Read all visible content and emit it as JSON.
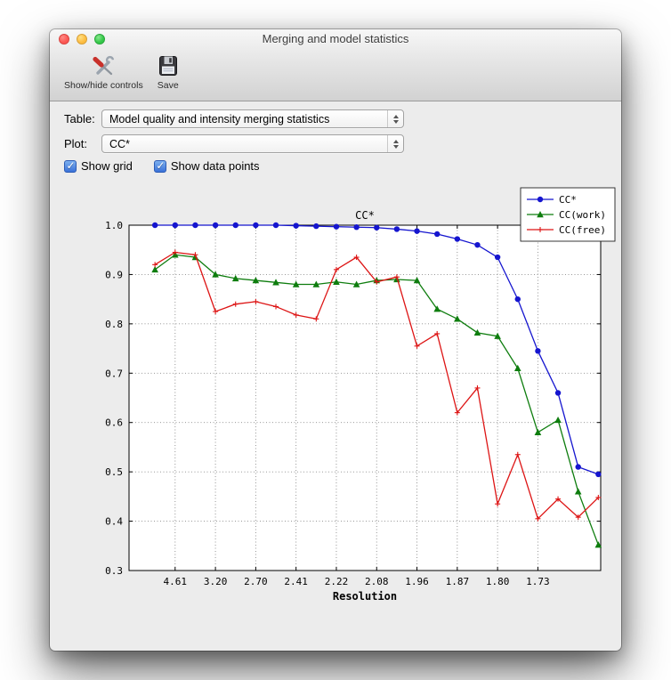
{
  "window": {
    "title": "Merging and model statistics"
  },
  "titlebar": {
    "buttons": [
      {
        "name": "close"
      },
      {
        "name": "minimize"
      },
      {
        "name": "zoom"
      }
    ]
  },
  "toolbar": {
    "buttons": [
      {
        "label": "Show/hide controls",
        "icon": "tools-icon"
      },
      {
        "label": "Save",
        "icon": "save-icon"
      }
    ]
  },
  "controls": {
    "table": {
      "label": "Table:",
      "value": "Model quality and intensity merging statistics"
    },
    "plot": {
      "label": "Plot:",
      "value": "CC*"
    },
    "checkboxes": [
      {
        "label": "Show grid",
        "checked": true
      },
      {
        "label": "Show data points",
        "checked": true
      }
    ]
  },
  "chart_data": {
    "type": "line",
    "title": "CC*",
    "xlabel": "Resolution",
    "ylabel": "",
    "ylim": [
      0.3,
      1.0
    ],
    "yticks": [
      0.3,
      0.4,
      0.5,
      0.6,
      0.7,
      0.8,
      0.9,
      1.0
    ],
    "xtick_labels": [
      "4.61",
      "3.20",
      "2.70",
      "2.41",
      "2.22",
      "2.08",
      "1.96",
      "1.87",
      "1.80",
      "1.73"
    ],
    "xtick_bins": [
      1,
      3,
      5,
      7,
      9,
      11,
      13,
      15,
      17,
      19
    ],
    "n_bins": 23,
    "grid": true,
    "show_data_points": true,
    "legend_position": "upper right",
    "series": [
      {
        "name": "CC*",
        "color": "#1515cf",
        "marker": "circle",
        "values": [
          1.0,
          1.0,
          1.0,
          1.0,
          1.0,
          1.0,
          1.0,
          0.999,
          0.998,
          0.997,
          0.996,
          0.995,
          0.992,
          0.988,
          0.982,
          0.972,
          0.96,
          0.935,
          0.85,
          0.745,
          0.66,
          0.51,
          0.495
        ]
      },
      {
        "name": "CC(work)",
        "color": "#0e7d0e",
        "marker": "triangle",
        "values": [
          0.91,
          0.94,
          0.935,
          0.9,
          0.892,
          0.888,
          0.884,
          0.88,
          0.88,
          0.885,
          0.88,
          0.888,
          0.89,
          0.888,
          0.83,
          0.81,
          0.782,
          0.775,
          0.71,
          0.58,
          0.605,
          0.46,
          0.352
        ]
      },
      {
        "name": "CC(free)",
        "color": "#dd1414",
        "marker": "plus",
        "values": [
          0.92,
          0.945,
          0.94,
          0.825,
          0.84,
          0.845,
          0.835,
          0.818,
          0.81,
          0.91,
          0.935,
          0.885,
          0.895,
          0.755,
          0.78,
          0.62,
          0.67,
          0.435,
          0.535,
          0.405,
          0.445,
          0.408,
          0.448
        ]
      }
    ]
  }
}
